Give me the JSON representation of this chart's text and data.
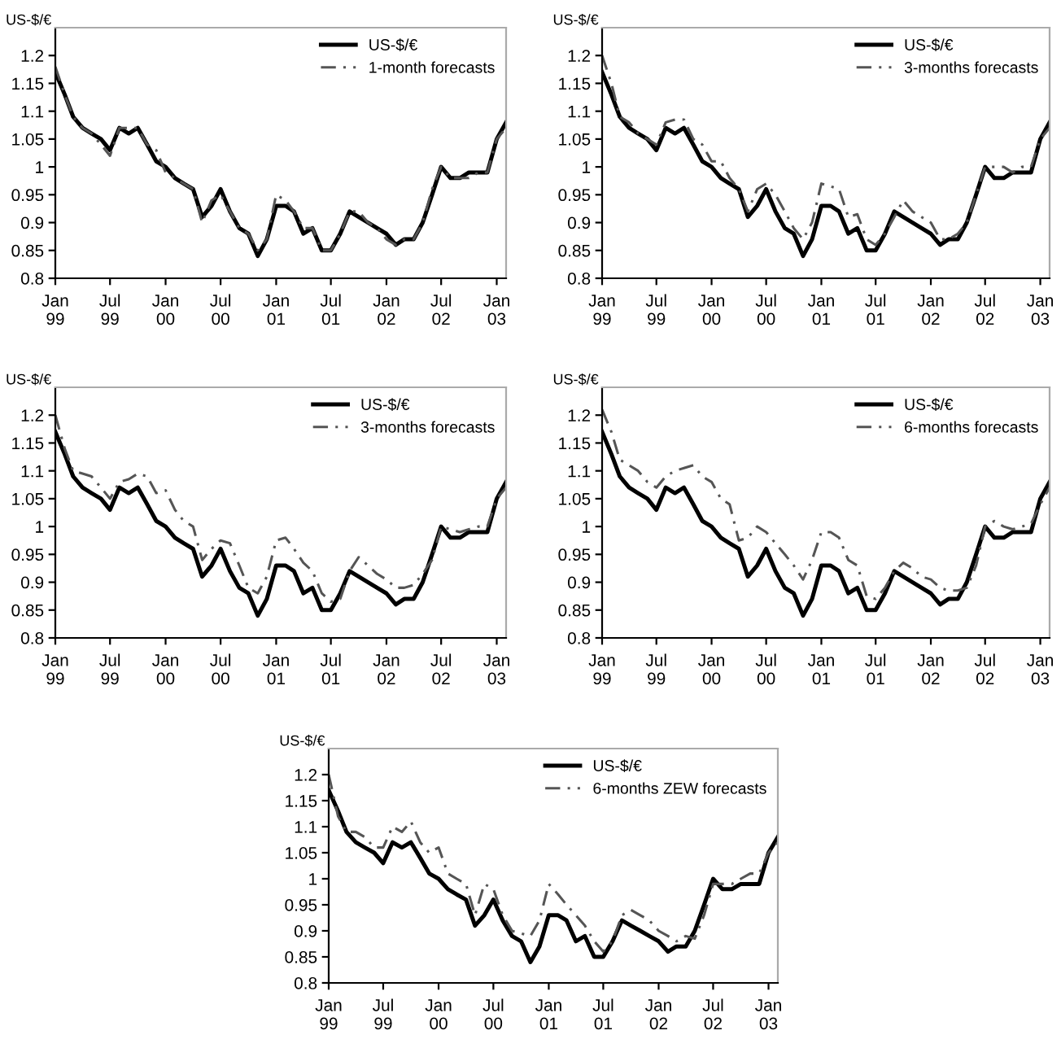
{
  "chart_data": [
    {
      "type": "line",
      "ylabel": "US-$/€",
      "legend": "top right",
      "ylim": [
        0.8,
        1.25
      ],
      "yticks": [
        0.8,
        0.85,
        0.9,
        0.95,
        1,
        1.05,
        1.1,
        1.15,
        1.2
      ],
      "xlim": [
        "1999-01",
        "2003-02"
      ],
      "xticks": [
        {
          "value": "1999-01",
          "label": "Jan\n99"
        },
        {
          "value": "1999-07",
          "label": "Jul\n99"
        },
        {
          "value": "2000-01",
          "label": "Jan\n00"
        },
        {
          "value": "2000-07",
          "label": "Jul\n00"
        },
        {
          "value": "2001-01",
          "label": "Jan\n01"
        },
        {
          "value": "2001-07",
          "label": "Jul\n01"
        },
        {
          "value": "2002-01",
          "label": "Jan\n02"
        },
        {
          "value": "2002-07",
          "label": "Jul\n02"
        },
        {
          "value": "2003-01",
          "label": "Jan\n03"
        }
      ],
      "x": [
        "1999-01",
        "1999-02",
        "1999-03",
        "1999-04",
        "1999-05",
        "1999-06",
        "1999-07",
        "1999-08",
        "1999-09",
        "1999-10",
        "1999-11",
        "1999-12",
        "2000-01",
        "2000-02",
        "2000-03",
        "2000-04",
        "2000-05",
        "2000-06",
        "2000-07",
        "2000-08",
        "2000-09",
        "2000-10",
        "2000-11",
        "2000-12",
        "2001-01",
        "2001-02",
        "2001-03",
        "2001-04",
        "2001-05",
        "2001-06",
        "2001-07",
        "2001-08",
        "2001-09",
        "2001-10",
        "2001-11",
        "2001-12",
        "2002-01",
        "2002-02",
        "2002-03",
        "2002-04",
        "2002-05",
        "2002-06",
        "2002-07",
        "2002-08",
        "2002-09",
        "2002-10",
        "2002-11",
        "2002-12",
        "2003-01",
        "2003-02"
      ],
      "series": [
        {
          "name": "US-$/€",
          "color": "#000000",
          "line_style": "solid",
          "values": [
            1.17,
            1.13,
            1.09,
            1.07,
            1.06,
            1.05,
            1.03,
            1.07,
            1.06,
            1.07,
            1.04,
            1.01,
            1.0,
            0.98,
            0.97,
            0.96,
            0.91,
            0.93,
            0.96,
            0.92,
            0.89,
            0.88,
            0.84,
            0.87,
            0.93,
            0.93,
            0.92,
            0.88,
            0.89,
            0.85,
            0.85,
            0.88,
            0.92,
            0.91,
            0.9,
            0.89,
            0.88,
            0.86,
            0.87,
            0.87,
            0.9,
            0.95,
            1.0,
            0.98,
            0.98,
            0.99,
            0.99,
            0.99,
            1.05,
            1.08
          ]
        },
        {
          "name": "1-month forecasts",
          "color": "#555555",
          "line_style": "dashed",
          "values": [
            1.18,
            1.13,
            1.09,
            1.07,
            1.06,
            1.04,
            1.02,
            1.07,
            1.07,
            1.07,
            1.04,
            1.03,
            0.99,
            0.98,
            0.97,
            0.96,
            0.9,
            0.94,
            0.95,
            0.92,
            0.89,
            0.88,
            0.85,
            0.87,
            0.95,
            0.94,
            0.92,
            0.89,
            0.89,
            0.85,
            0.85,
            0.88,
            0.92,
            0.92,
            0.9,
            0.89,
            0.87,
            0.86,
            0.87,
            0.87,
            0.9,
            0.96,
            1.0,
            0.98,
            0.98,
            0.98,
            0.99,
            0.99,
            1.05,
            1.07
          ]
        }
      ]
    },
    {
      "type": "line",
      "ylabel": "US-$/€",
      "legend": "top right",
      "ylim": [
        0.8,
        1.25
      ],
      "yticks": [
        0.8,
        0.85,
        0.9,
        0.95,
        1,
        1.05,
        1.1,
        1.15,
        1.2
      ],
      "xlim": [
        "1999-01",
        "2003-02"
      ],
      "xticks": [
        {
          "value": "1999-01",
          "label": "Jan\n99"
        },
        {
          "value": "1999-07",
          "label": "Jul\n99"
        },
        {
          "value": "2000-01",
          "label": "Jan\n00"
        },
        {
          "value": "2000-07",
          "label": "Jul\n00"
        },
        {
          "value": "2001-01",
          "label": "Jan\n01"
        },
        {
          "value": "2001-07",
          "label": "Jul\n01"
        },
        {
          "value": "2002-01",
          "label": "Jan\n02"
        },
        {
          "value": "2002-07",
          "label": "Jul\n02"
        },
        {
          "value": "2003-01",
          "label": "Jan\n03"
        }
      ],
      "x": [
        "1999-01",
        "1999-02",
        "1999-03",
        "1999-04",
        "1999-05",
        "1999-06",
        "1999-07",
        "1999-08",
        "1999-09",
        "1999-10",
        "1999-11",
        "1999-12",
        "2000-01",
        "2000-02",
        "2000-03",
        "2000-04",
        "2000-05",
        "2000-06",
        "2000-07",
        "2000-08",
        "2000-09",
        "2000-10",
        "2000-11",
        "2000-12",
        "2001-01",
        "2001-02",
        "2001-03",
        "2001-04",
        "2001-05",
        "2001-06",
        "2001-07",
        "2001-08",
        "2001-09",
        "2001-10",
        "2001-11",
        "2001-12",
        "2002-01",
        "2002-02",
        "2002-03",
        "2002-04",
        "2002-05",
        "2002-06",
        "2002-07",
        "2002-08",
        "2002-09",
        "2002-10",
        "2002-11",
        "2002-12",
        "2003-01",
        "2003-02"
      ],
      "series": [
        {
          "name": "US-$/€",
          "color": "#000000",
          "line_style": "solid",
          "values": [
            1.17,
            1.13,
            1.09,
            1.07,
            1.06,
            1.05,
            1.03,
            1.07,
            1.06,
            1.07,
            1.04,
            1.01,
            1.0,
            0.98,
            0.97,
            0.96,
            0.91,
            0.93,
            0.96,
            0.92,
            0.89,
            0.88,
            0.84,
            0.87,
            0.93,
            0.93,
            0.92,
            0.88,
            0.89,
            0.85,
            0.85,
            0.88,
            0.92,
            0.91,
            0.9,
            0.89,
            0.88,
            0.86,
            0.87,
            0.87,
            0.9,
            0.95,
            1.0,
            0.98,
            0.98,
            0.99,
            0.99,
            0.99,
            1.05,
            1.08
          ]
        },
        {
          "name": "3-months forecasts",
          "color": "#555555",
          "line_style": "dashed",
          "values": [
            1.2,
            1.15,
            1.09,
            1.08,
            1.06,
            1.05,
            1.04,
            1.08,
            1.085,
            1.085,
            1.05,
            1.04,
            1.01,
            1.01,
            0.98,
            0.96,
            0.92,
            0.96,
            0.97,
            0.95,
            0.92,
            0.89,
            0.87,
            0.9,
            0.97,
            0.965,
            0.96,
            0.91,
            0.915,
            0.87,
            0.86,
            0.88,
            0.91,
            0.94,
            0.92,
            0.91,
            0.9,
            0.87,
            0.87,
            0.88,
            0.9,
            0.95,
            1.0,
            1.0,
            1.0,
            0.99,
            1.0,
            1.0,
            1.05,
            1.07
          ]
        }
      ]
    },
    {
      "type": "line",
      "ylabel": "US-$/€",
      "legend": "top right",
      "ylim": [
        0.8,
        1.25
      ],
      "yticks": [
        0.8,
        0.85,
        0.9,
        0.95,
        1,
        1.05,
        1.1,
        1.15,
        1.2
      ],
      "xlim": [
        "1999-01",
        "2003-02"
      ],
      "xticks": [
        {
          "value": "1999-01",
          "label": "Jan\n99"
        },
        {
          "value": "1999-07",
          "label": "Jul\n99"
        },
        {
          "value": "2000-01",
          "label": "Jan\n00"
        },
        {
          "value": "2000-07",
          "label": "Jul\n00"
        },
        {
          "value": "2001-01",
          "label": "Jan\n01"
        },
        {
          "value": "2001-07",
          "label": "Jul\n01"
        },
        {
          "value": "2002-01",
          "label": "Jan\n02"
        },
        {
          "value": "2002-07",
          "label": "Jul\n02"
        },
        {
          "value": "2003-01",
          "label": "Jan\n03"
        }
      ],
      "x": [
        "1999-01",
        "1999-02",
        "1999-03",
        "1999-04",
        "1999-05",
        "1999-06",
        "1999-07",
        "1999-08",
        "1999-09",
        "1999-10",
        "1999-11",
        "1999-12",
        "2000-01",
        "2000-02",
        "2000-03",
        "2000-04",
        "2000-05",
        "2000-06",
        "2000-07",
        "2000-08",
        "2000-09",
        "2000-10",
        "2000-11",
        "2000-12",
        "2001-01",
        "2001-02",
        "2001-03",
        "2001-04",
        "2001-05",
        "2001-06",
        "2001-07",
        "2001-08",
        "2001-09",
        "2001-10",
        "2001-11",
        "2001-12",
        "2002-01",
        "2002-02",
        "2002-03",
        "2002-04",
        "2002-05",
        "2002-06",
        "2002-07",
        "2002-08",
        "2002-09",
        "2002-10",
        "2002-11",
        "2002-12",
        "2003-01",
        "2003-02"
      ],
      "series": [
        {
          "name": "US-$/€",
          "color": "#000000",
          "line_style": "solid",
          "values": [
            1.17,
            1.13,
            1.09,
            1.07,
            1.06,
            1.05,
            1.03,
            1.07,
            1.06,
            1.07,
            1.04,
            1.01,
            1.0,
            0.98,
            0.97,
            0.96,
            0.91,
            0.93,
            0.96,
            0.92,
            0.89,
            0.88,
            0.84,
            0.87,
            0.93,
            0.93,
            0.92,
            0.88,
            0.89,
            0.85,
            0.85,
            0.88,
            0.92,
            0.91,
            0.9,
            0.89,
            0.88,
            0.86,
            0.87,
            0.87,
            0.9,
            0.95,
            1.0,
            0.98,
            0.98,
            0.99,
            0.99,
            0.99,
            1.05,
            1.08
          ]
        },
        {
          "name": "3-months forecasts",
          "color": "#555555",
          "line_style": "dashed",
          "values": [
            1.2,
            1.14,
            1.1,
            1.095,
            1.09,
            1.07,
            1.05,
            1.08,
            1.085,
            1.095,
            1.09,
            1.06,
            1.065,
            1.03,
            1.01,
            1.0,
            0.94,
            0.96,
            0.975,
            0.97,
            0.93,
            0.89,
            0.88,
            0.91,
            0.975,
            0.98,
            0.96,
            0.935,
            0.92,
            0.88,
            0.865,
            0.87,
            0.92,
            0.945,
            0.93,
            0.915,
            0.905,
            0.89,
            0.89,
            0.895,
            0.915,
            0.94,
            1.0,
            0.995,
            0.99,
            0.995,
            1.0,
            1.0,
            1.05,
            1.07
          ]
        }
      ]
    },
    {
      "type": "line",
      "ylabel": "US-$/€",
      "legend": "top right",
      "ylim": [
        0.8,
        1.25
      ],
      "yticks": [
        0.8,
        0.85,
        0.9,
        0.95,
        1,
        1.05,
        1.1,
        1.15,
        1.2
      ],
      "xlim": [
        "1999-01",
        "2003-02"
      ],
      "xticks": [
        {
          "value": "1999-01",
          "label": "Jan\n99"
        },
        {
          "value": "1999-07",
          "label": "Jul\n99"
        },
        {
          "value": "2000-01",
          "label": "Jan\n00"
        },
        {
          "value": "2000-07",
          "label": "Jul\n00"
        },
        {
          "value": "2001-01",
          "label": "Jan\n01"
        },
        {
          "value": "2001-07",
          "label": "Jul\n01"
        },
        {
          "value": "2002-01",
          "label": "Jan\n02"
        },
        {
          "value": "2002-07",
          "label": "Jul\n02"
        },
        {
          "value": "2003-01",
          "label": "Jan\n03"
        }
      ],
      "x": [
        "1999-01",
        "1999-02",
        "1999-03",
        "1999-04",
        "1999-05",
        "1999-06",
        "1999-07",
        "1999-08",
        "1999-09",
        "1999-10",
        "1999-11",
        "1999-12",
        "2000-01",
        "2000-02",
        "2000-03",
        "2000-04",
        "2000-05",
        "2000-06",
        "2000-07",
        "2000-08",
        "2000-09",
        "2000-10",
        "2000-11",
        "2000-12",
        "2001-01",
        "2001-02",
        "2001-03",
        "2001-04",
        "2001-05",
        "2001-06",
        "2001-07",
        "2001-08",
        "2001-09",
        "2001-10",
        "2001-11",
        "2001-12",
        "2002-01",
        "2002-02",
        "2002-03",
        "2002-04",
        "2002-05",
        "2002-06",
        "2002-07",
        "2002-08",
        "2002-09",
        "2002-10",
        "2002-11",
        "2002-12",
        "2003-01",
        "2003-02"
      ],
      "series": [
        {
          "name": "US-$/€",
          "color": "#000000",
          "line_style": "solid",
          "values": [
            1.17,
            1.13,
            1.09,
            1.07,
            1.06,
            1.05,
            1.03,
            1.07,
            1.06,
            1.07,
            1.04,
            1.01,
            1.0,
            0.98,
            0.97,
            0.96,
            0.91,
            0.93,
            0.96,
            0.92,
            0.89,
            0.88,
            0.84,
            0.87,
            0.93,
            0.93,
            0.92,
            0.88,
            0.89,
            0.85,
            0.85,
            0.88,
            0.92,
            0.91,
            0.9,
            0.89,
            0.88,
            0.86,
            0.87,
            0.87,
            0.9,
            0.95,
            1.0,
            0.98,
            0.98,
            0.99,
            0.99,
            0.99,
            1.05,
            1.08
          ]
        },
        {
          "name": "6-months forecasts",
          "color": "#555555",
          "line_style": "dashed",
          "values": [
            1.21,
            1.17,
            1.12,
            1.11,
            1.1,
            1.08,
            1.07,
            1.09,
            1.1,
            1.105,
            1.11,
            1.09,
            1.08,
            1.05,
            1.04,
            0.975,
            0.98,
            1.0,
            0.99,
            0.97,
            0.95,
            0.93,
            0.905,
            0.94,
            0.99,
            0.99,
            0.98,
            0.94,
            0.93,
            0.875,
            0.87,
            0.89,
            0.92,
            0.935,
            0.925,
            0.91,
            0.905,
            0.89,
            0.885,
            0.885,
            0.89,
            0.93,
            1.0,
            1.01,
            1.0,
            0.995,
            1.0,
            1.005,
            1.04,
            1.07
          ]
        }
      ]
    },
    {
      "type": "line",
      "ylabel": "US-$/€",
      "legend": "top right",
      "ylim": [
        0.8,
        1.25
      ],
      "yticks": [
        0.8,
        0.85,
        0.9,
        0.95,
        1,
        1.05,
        1.1,
        1.15,
        1.2
      ],
      "xlim": [
        "1999-01",
        "2003-02"
      ],
      "xticks": [
        {
          "value": "1999-01",
          "label": "Jan\n99"
        },
        {
          "value": "1999-07",
          "label": "Jul\n99"
        },
        {
          "value": "2000-01",
          "label": "Jan\n00"
        },
        {
          "value": "2000-07",
          "label": "Jul\n00"
        },
        {
          "value": "2001-01",
          "label": "Jan\n01"
        },
        {
          "value": "2001-07",
          "label": "Jul\n01"
        },
        {
          "value": "2002-01",
          "label": "Jan\n02"
        },
        {
          "value": "2002-07",
          "label": "Jul\n02"
        },
        {
          "value": "2003-01",
          "label": "Jan\n03"
        }
      ],
      "x": [
        "1999-01",
        "1999-02",
        "1999-03",
        "1999-04",
        "1999-05",
        "1999-06",
        "1999-07",
        "1999-08",
        "1999-09",
        "1999-10",
        "1999-11",
        "1999-12",
        "2000-01",
        "2000-02",
        "2000-03",
        "2000-04",
        "2000-05",
        "2000-06",
        "2000-07",
        "2000-08",
        "2000-09",
        "2000-10",
        "2000-11",
        "2000-12",
        "2001-01",
        "2001-02",
        "2001-03",
        "2001-04",
        "2001-05",
        "2001-06",
        "2001-07",
        "2001-08",
        "2001-09",
        "2001-10",
        "2001-11",
        "2001-12",
        "2002-01",
        "2002-02",
        "2002-03",
        "2002-04",
        "2002-05",
        "2002-06",
        "2002-07",
        "2002-08",
        "2002-09",
        "2002-10",
        "2002-11",
        "2002-12",
        "2003-01",
        "2003-02"
      ],
      "series": [
        {
          "name": "US-$/€",
          "color": "#000000",
          "line_style": "solid",
          "values": [
            1.17,
            1.13,
            1.09,
            1.07,
            1.06,
            1.05,
            1.03,
            1.07,
            1.06,
            1.07,
            1.04,
            1.01,
            1.0,
            0.98,
            0.97,
            0.96,
            0.91,
            0.93,
            0.96,
            0.92,
            0.89,
            0.88,
            0.84,
            0.87,
            0.93,
            0.93,
            0.92,
            0.88,
            0.89,
            0.85,
            0.85,
            0.88,
            0.92,
            0.91,
            0.9,
            0.89,
            0.88,
            0.86,
            0.87,
            0.87,
            0.9,
            0.95,
            1.0,
            0.98,
            0.98,
            0.99,
            0.99,
            0.99,
            1.05,
            1.08
          ]
        },
        {
          "name": "6-months ZEW forecasts",
          "color": "#555555",
          "line_style": "dashed",
          "values": [
            1.2,
            1.12,
            1.09,
            1.09,
            1.08,
            1.06,
            1.06,
            1.1,
            1.09,
            1.11,
            1.07,
            1.05,
            1.06,
            1.01,
            1.0,
            0.99,
            0.93,
            0.99,
            0.98,
            0.93,
            0.9,
            0.895,
            0.89,
            0.92,
            0.99,
            0.97,
            0.95,
            0.93,
            0.91,
            0.88,
            0.86,
            0.88,
            0.93,
            0.94,
            0.93,
            0.92,
            0.9,
            0.89,
            0.88,
            0.89,
            0.885,
            0.93,
            0.99,
            0.99,
            0.99,
            1.0,
            1.01,
            1.01,
            1.05,
            1.07
          ]
        }
      ]
    }
  ]
}
